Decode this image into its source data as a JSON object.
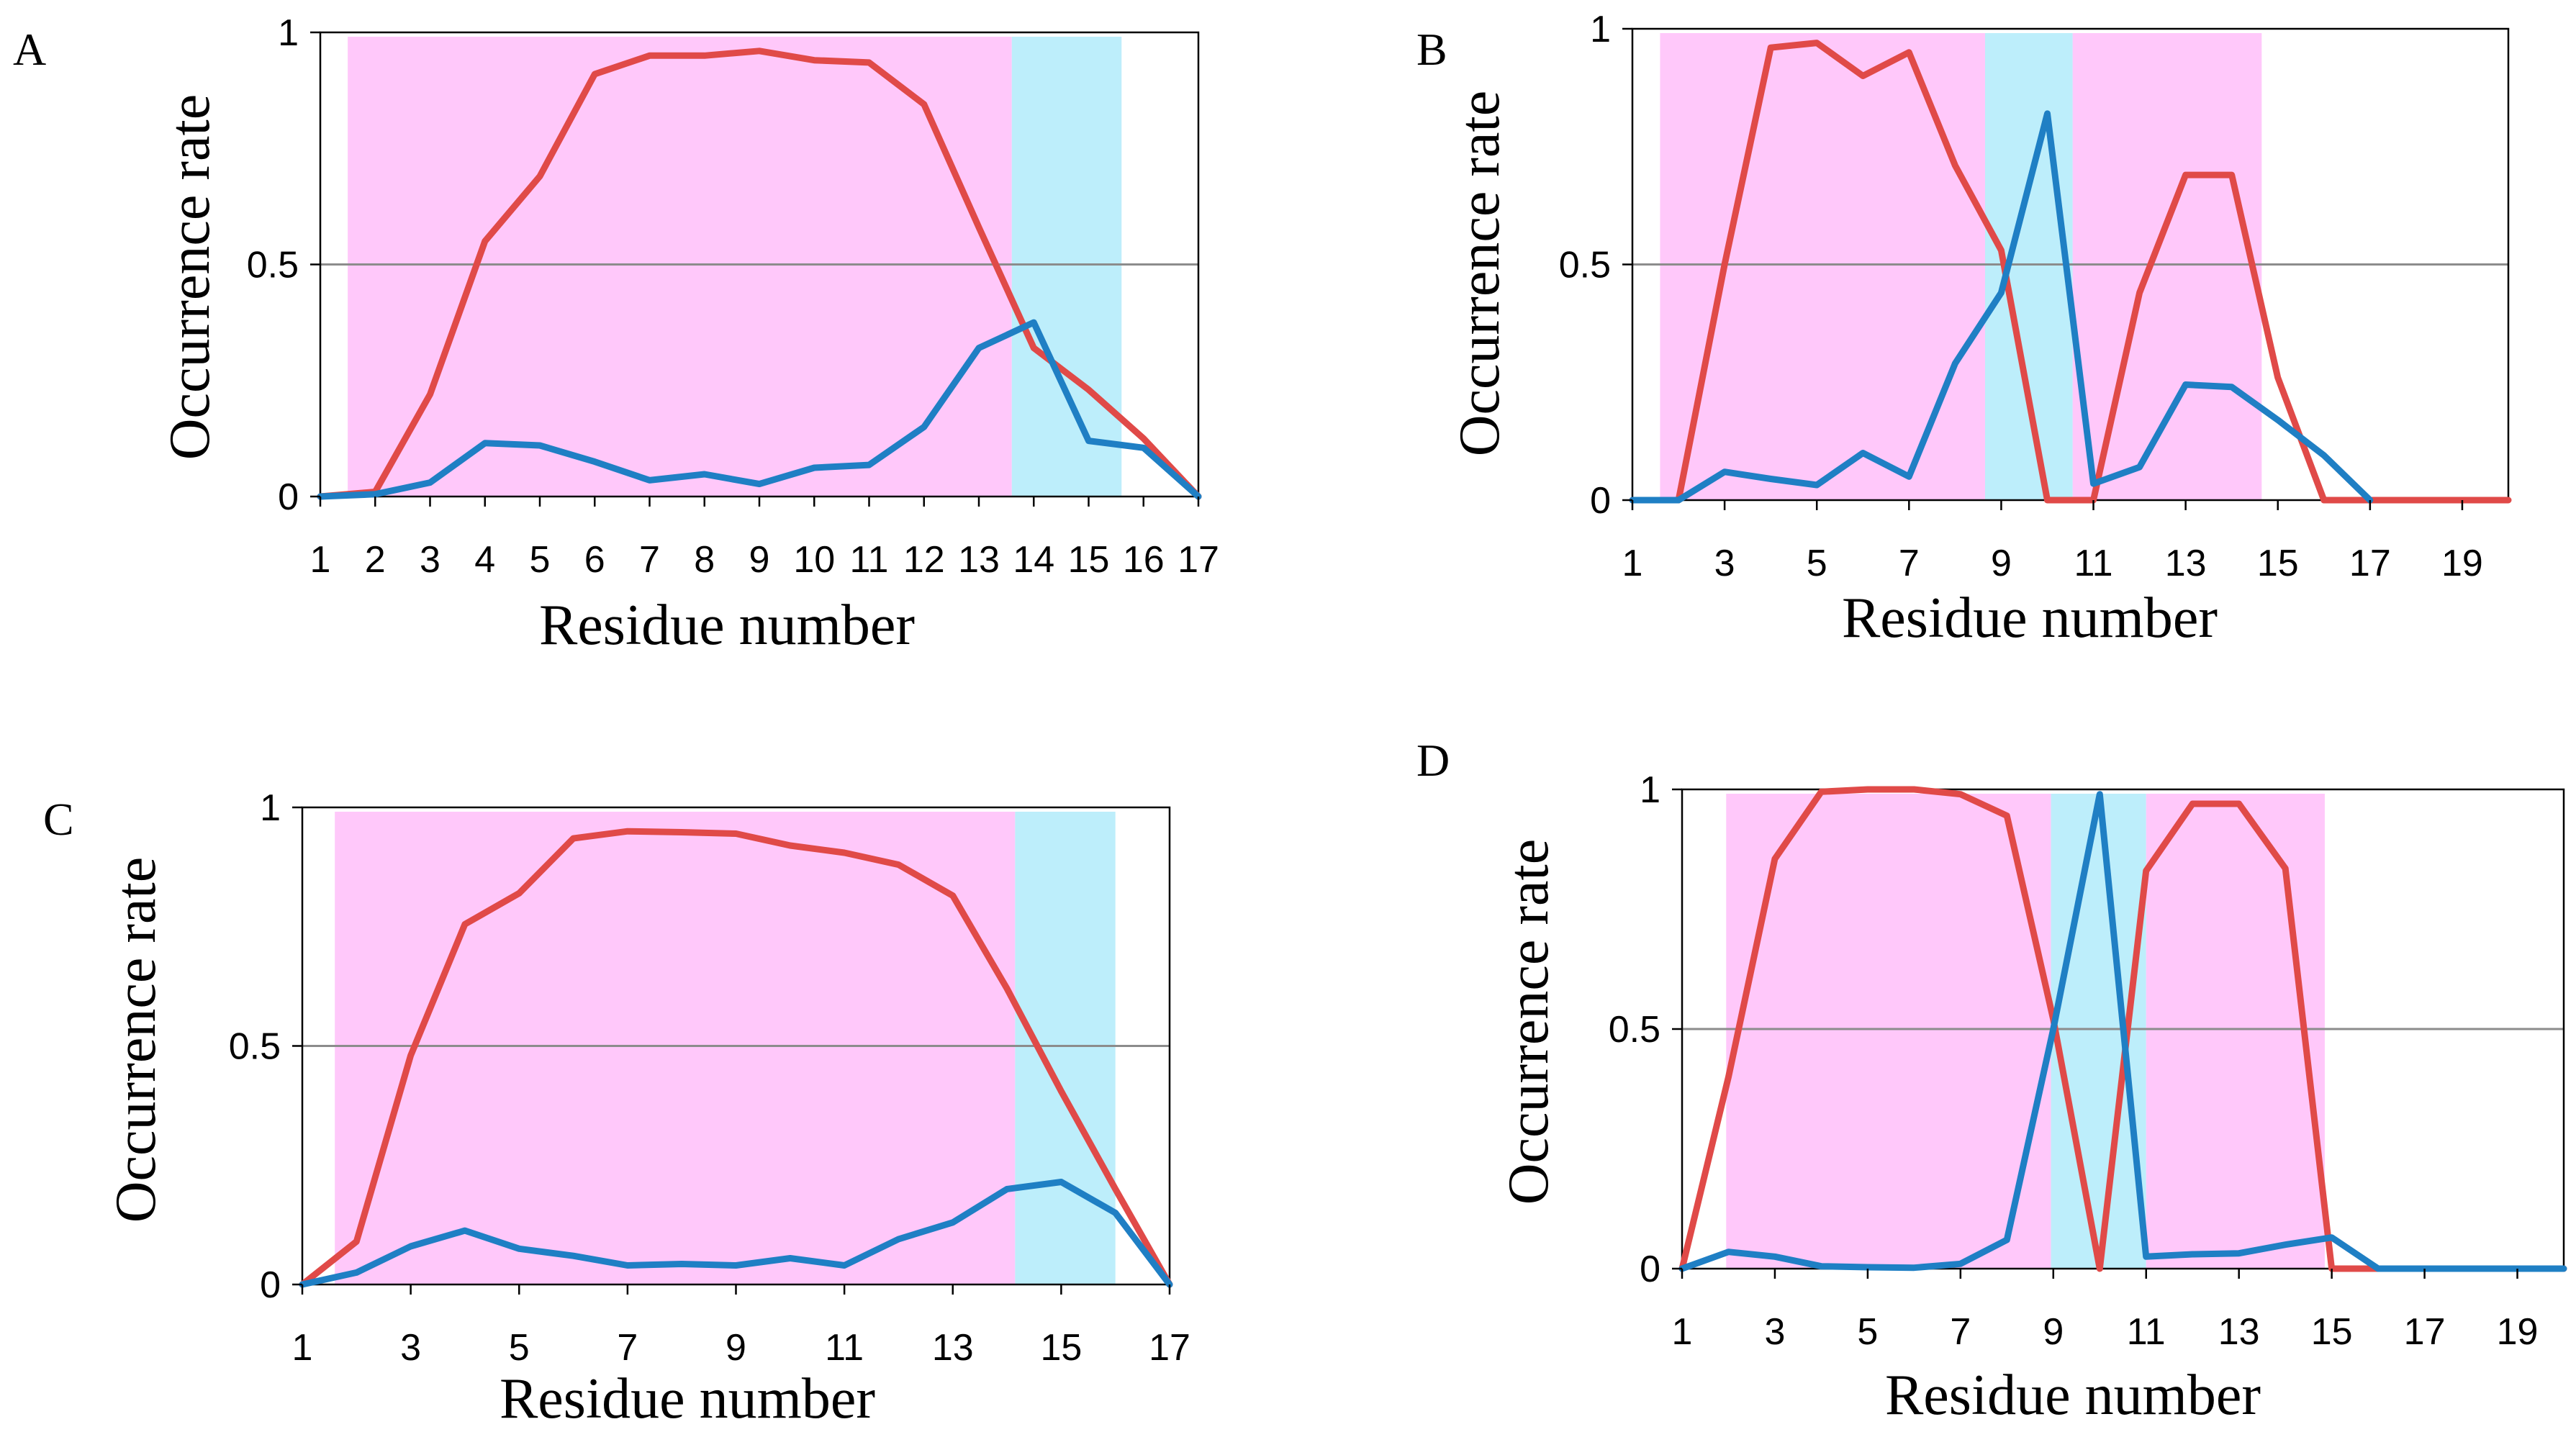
{
  "figure": {
    "background": "#ffffff"
  },
  "colors": {
    "red_series": "#e04a48",
    "blue_series": "#1f7fc4",
    "helix_band": "#ffc8fa",
    "sheet_band": "#bdeefb",
    "gridline": "#8c8c8c",
    "axis": "#000000"
  },
  "chart_data": [
    {
      "panel": "A",
      "type": "line",
      "xlabel": "Residue number",
      "ylabel": "Occurrence rate",
      "xlim": [
        1,
        17
      ],
      "ylim": [
        0,
        1
      ],
      "xticks": [
        1,
        2,
        3,
        4,
        5,
        6,
        7,
        8,
        9,
        10,
        11,
        12,
        13,
        14,
        15,
        16,
        17
      ],
      "yticks": [
        0,
        0.5,
        1
      ],
      "ytick_labels": [
        "0",
        "0.5",
        "1"
      ],
      "gridlines_y": [
        0.5
      ],
      "bands": [
        {
          "color": "helix",
          "from": 1.5,
          "to": 13.6
        },
        {
          "color": "sheet",
          "from": 13.6,
          "to": 15.6
        }
      ],
      "series": [
        {
          "name": "red",
          "x": [
            1,
            2,
            3,
            4,
            5,
            6,
            7,
            8,
            9,
            10,
            11,
            12,
            13,
            14,
            15,
            16,
            17
          ],
          "values": [
            0,
            0.01,
            0.22,
            0.55,
            0.69,
            0.91,
            0.95,
            0.95,
            0.96,
            0.94,
            0.935,
            0.845,
            0.58,
            0.32,
            0.23,
            0.125,
            0
          ]
        },
        {
          "name": "blue",
          "x": [
            1,
            2,
            3,
            4,
            5,
            6,
            7,
            8,
            9,
            10,
            11,
            12,
            13,
            14,
            15,
            16,
            17
          ],
          "values": [
            0,
            0.005,
            0.03,
            0.115,
            0.11,
            0.075,
            0.035,
            0.048,
            0.027,
            0.062,
            0.068,
            0.15,
            0.32,
            0.375,
            0.12,
            0.105,
            0
          ]
        }
      ]
    },
    {
      "panel": "B",
      "type": "line",
      "xlabel": "Residue number",
      "ylabel": "Occurrence rate",
      "xlim": [
        1,
        20
      ],
      "ylim": [
        0,
        1
      ],
      "xticks": [
        1,
        3,
        5,
        7,
        9,
        11,
        13,
        15,
        17,
        19
      ],
      "yticks": [
        0,
        0.5,
        1
      ],
      "ytick_labels": [
        "0",
        "0.5",
        "1"
      ],
      "gridlines_y": [
        0.5
      ],
      "bands": [
        {
          "color": "helix",
          "from": 1.6,
          "to": 8.65
        },
        {
          "color": "sheet",
          "from": 8.65,
          "to": 10.55
        },
        {
          "color": "helix",
          "from": 10.55,
          "to": 14.65
        }
      ],
      "series": [
        {
          "name": "red",
          "x": [
            1,
            2,
            3,
            4,
            5,
            6,
            7,
            8,
            9,
            10,
            11,
            12,
            13,
            14,
            15,
            16,
            17,
            18,
            19,
            20
          ],
          "values": [
            0,
            0,
            0.5,
            0.96,
            0.97,
            0.9,
            0.95,
            0.71,
            0.53,
            0,
            0,
            0.44,
            0.69,
            0.69,
            0.26,
            0,
            0,
            0,
            0,
            0
          ]
        },
        {
          "name": "blue",
          "x": [
            1,
            2,
            3,
            4,
            5,
            6,
            7,
            8,
            9,
            10,
            11,
            12,
            13,
            14,
            15,
            16,
            17
          ],
          "values": [
            0,
            0,
            0.06,
            0.045,
            0.032,
            0.1,
            0.05,
            0.29,
            0.44,
            0.82,
            0.035,
            0.07,
            0.245,
            0.24,
            0.17,
            0.095,
            0
          ]
        }
      ]
    },
    {
      "panel": "C",
      "type": "line",
      "xlabel": "Residue number",
      "ylabel": "Occurrence rate",
      "xlim": [
        1,
        17
      ],
      "ylim": [
        0,
        1
      ],
      "xticks": [
        1,
        3,
        5,
        7,
        9,
        11,
        13,
        15,
        17
      ],
      "yticks": [
        0,
        0.5,
        1
      ],
      "ytick_labels": [
        "0",
        "0.5",
        "1"
      ],
      "gridlines_y": [
        0.5
      ],
      "bands": [
        {
          "color": "helix",
          "from": 1.6,
          "to": 14.15
        },
        {
          "color": "sheet",
          "from": 14.15,
          "to": 16.0
        }
      ],
      "series": [
        {
          "name": "red",
          "x": [
            1,
            2,
            3,
            4,
            5,
            6,
            7,
            8,
            9,
            10,
            11,
            12,
            13,
            14,
            15,
            16,
            17
          ],
          "values": [
            0,
            0.09,
            0.48,
            0.755,
            0.82,
            0.935,
            0.95,
            0.948,
            0.945,
            0.92,
            0.905,
            0.88,
            0.815,
            0.62,
            0.405,
            0.2,
            0
          ]
        },
        {
          "name": "blue",
          "x": [
            1,
            2,
            3,
            4,
            5,
            6,
            7,
            8,
            9,
            10,
            11,
            12,
            13,
            14,
            15,
            16,
            17
          ],
          "values": [
            0,
            0.025,
            0.08,
            0.113,
            0.075,
            0.06,
            0.04,
            0.043,
            0.04,
            0.055,
            0.04,
            0.095,
            0.13,
            0.2,
            0.215,
            0.15,
            0
          ]
        }
      ]
    },
    {
      "panel": "D",
      "type": "line",
      "xlabel": "Residue number",
      "ylabel": "Occurrence rate",
      "xlim": [
        1,
        20
      ],
      "ylim": [
        0,
        1
      ],
      "xticks": [
        1,
        3,
        5,
        7,
        9,
        11,
        13,
        15,
        17,
        19
      ],
      "yticks": [
        0,
        0.5,
        1
      ],
      "ytick_labels": [
        "0",
        "0.5",
        "1"
      ],
      "gridlines_y": [
        0.5
      ],
      "bands": [
        {
          "color": "helix",
          "from": 1.95,
          "to": 8.95
        },
        {
          "color": "sheet",
          "from": 8.95,
          "to": 11.0
        },
        {
          "color": "helix",
          "from": 11.0,
          "to": 14.85
        }
      ],
      "series": [
        {
          "name": "red",
          "x": [
            1,
            2,
            3,
            4,
            5,
            6,
            7,
            8,
            9,
            10,
            11,
            12,
            13,
            14,
            15,
            16,
            17,
            18,
            19,
            20
          ],
          "values": [
            0,
            0.4,
            0.855,
            0.995,
            1,
            1,
            0.99,
            0.945,
            0.52,
            0,
            0.83,
            0.97,
            0.97,
            0.835,
            0,
            0,
            0,
            0,
            0,
            0
          ]
        },
        {
          "name": "blue",
          "x": [
            1,
            2,
            3,
            4,
            5,
            6,
            7,
            8,
            9,
            10,
            11,
            12,
            13,
            14,
            15,
            16,
            17,
            18,
            19,
            20
          ],
          "values": [
            0,
            0.035,
            0.025,
            0.005,
            0.003,
            0.002,
            0.01,
            0.06,
            0.5,
            0.99,
            0.025,
            0.03,
            0.032,
            0.05,
            0.065,
            0,
            0,
            0,
            0,
            0
          ]
        }
      ]
    }
  ]
}
